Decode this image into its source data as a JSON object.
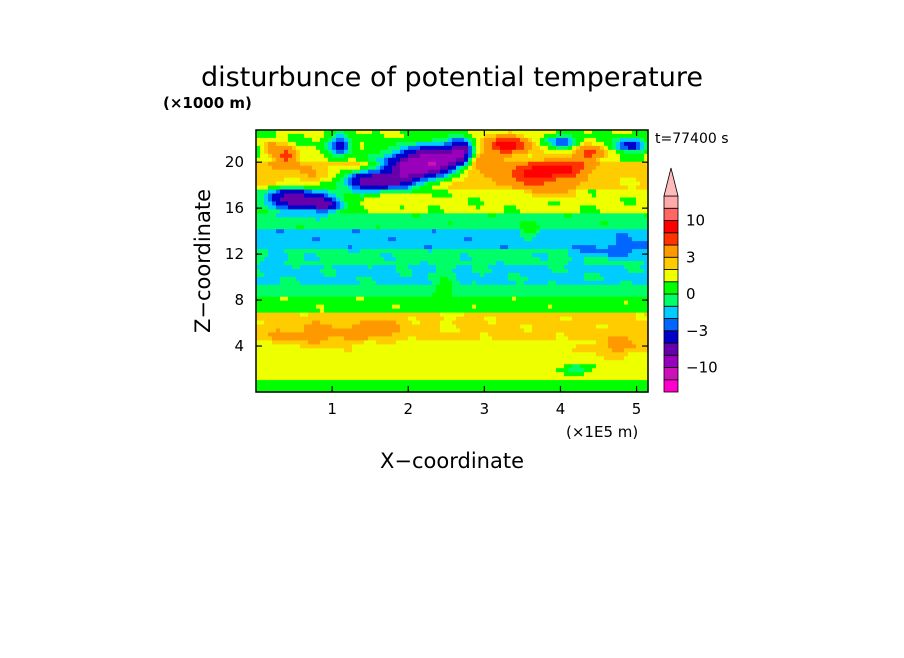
{
  "chart_data": {
    "type": "heatmap",
    "title": "disturbunce of potential temperature",
    "time_label": "t=77400 s",
    "xlabel": "X−coordinate",
    "ylabel": "Z−coordinate",
    "x_unit": "(×1E5 m)",
    "y_unit": "(×1000 m)",
    "xlim": [
      0,
      5.15
    ],
    "ylim": [
      0,
      22.8
    ],
    "xticks": [
      "1",
      "2",
      "3",
      "4",
      "5"
    ],
    "yticks": [
      "4",
      "8",
      "12",
      "16",
      "20"
    ],
    "colorbar": {
      "levels": [
        -20,
        -15,
        -10,
        -7,
        -5,
        -3,
        -2,
        -1,
        0,
        1,
        2,
        3,
        5,
        7,
        10,
        15,
        20
      ],
      "colors": [
        "#ff00cc",
        "#cc11bb",
        "#9900bb",
        "#6600aa",
        "#0000cc",
        "#0066ff",
        "#00ccff",
        "#00ff66",
        "#00ff00",
        "#eeff00",
        "#ffcc00",
        "#ff9900",
        "#ff3300",
        "#ff0000",
        "#ff6666",
        "#ffaaaa",
        "#ffbbbb"
      ],
      "tick_labels": [
        {
          "label": "10",
          "value": 10
        },
        {
          "label": "3",
          "value": 3
        },
        {
          "label": "0",
          "value": 0
        },
        {
          "label": "−3",
          "value": -3
        },
        {
          "label": "−10",
          "value": -10
        }
      ]
    },
    "field": {
      "description_rows_bottom_to_top": true,
      "z_bands": [
        {
          "z": [
            0,
            1.0
          ],
          "value": 0.5
        },
        {
          "z": [
            1.0,
            4.5
          ],
          "value": 1.5
        },
        {
          "z": [
            4.5,
            7.0
          ],
          "value": 2.3
        },
        {
          "z": [
            7.0,
            8.3
          ],
          "value": 0.6
        },
        {
          "z": [
            8.3,
            9.5
          ],
          "value": -0.5
        },
        {
          "z": [
            9.5,
            11.0
          ],
          "value": -1.2
        },
        {
          "z": [
            11.0,
            12.5
          ],
          "value": -0.7
        },
        {
          "z": [
            12.5,
            14.0
          ],
          "value": -1.6
        },
        {
          "z": [
            14.0,
            15.5
          ],
          "value": -0.4
        },
        {
          "z": [
            15.5,
            17.5
          ],
          "value": 1.2
        },
        {
          "z": [
            17.5,
            20.0
          ],
          "value": 2.5
        },
        {
          "z": [
            20.0,
            22.8
          ],
          "value": 1.0
        }
      ],
      "blobs": [
        {
          "x": 0.4,
          "z": 20.5,
          "rx": 0.15,
          "rz": 0.8,
          "value": 6
        },
        {
          "x": 0.2,
          "z": 21.2,
          "rx": 0.1,
          "rz": 0.6,
          "value": 4
        },
        {
          "x": 0.5,
          "z": 16.8,
          "rx": 0.4,
          "rz": 1.0,
          "value": -6
        },
        {
          "x": 0.9,
          "z": 16.3,
          "rx": 0.25,
          "rz": 0.7,
          "value": -4
        },
        {
          "x": 0.7,
          "z": 19.0,
          "rx": 0.3,
          "rz": 0.8,
          "value": 3
        },
        {
          "x": 1.1,
          "z": 21.5,
          "rx": 0.15,
          "rz": 0.8,
          "value": -4
        },
        {
          "x": 1.5,
          "z": 18.3,
          "rx": 0.4,
          "rz": 0.9,
          "value": -6
        },
        {
          "x": 2.0,
          "z": 19.5,
          "rx": 0.35,
          "rz": 1.5,
          "value": -7
        },
        {
          "x": 2.4,
          "z": 20.2,
          "rx": 0.3,
          "rz": 1.2,
          "value": -8
        },
        {
          "x": 2.7,
          "z": 21.0,
          "rx": 0.15,
          "rz": 1.0,
          "value": -6
        },
        {
          "x": 3.0,
          "z": 20.0,
          "rx": 0.2,
          "rz": 0.8,
          "value": 5
        },
        {
          "x": 3.3,
          "z": 21.5,
          "rx": 0.3,
          "rz": 0.8,
          "value": 8
        },
        {
          "x": 3.65,
          "z": 19.0,
          "rx": 0.35,
          "rz": 1.0,
          "value": 8
        },
        {
          "x": 4.1,
          "z": 19.5,
          "rx": 0.25,
          "rz": 0.8,
          "value": 7
        },
        {
          "x": 4.4,
          "z": 20.8,
          "rx": 0.2,
          "rz": 0.6,
          "value": 6
        },
        {
          "x": 4.8,
          "z": 18.0,
          "rx": 0.3,
          "rz": 0.9,
          "value": 2
        },
        {
          "x": 4.9,
          "z": 21.5,
          "rx": 0.2,
          "rz": 0.6,
          "value": -4
        },
        {
          "x": 4.0,
          "z": 21.8,
          "rx": 0.2,
          "rz": 0.5,
          "value": -3
        },
        {
          "x": 3.9,
          "z": 17.5,
          "rx": 0.25,
          "rz": 0.6,
          "value": 4
        },
        {
          "x": 1.8,
          "z": 17.0,
          "rx": 0.4,
          "rz": 0.6,
          "value": 2.5
        },
        {
          "x": 3.6,
          "z": 14.0,
          "rx": 0.12,
          "rz": 0.6,
          "value": 0.5
        },
        {
          "x": 4.9,
          "z": 12.5,
          "rx": 0.3,
          "rz": 0.8,
          "value": -2.5
        },
        {
          "x": 0.3,
          "z": 11.5,
          "rx": 0.25,
          "rz": 0.5,
          "value": -1.5
        },
        {
          "x": 4.4,
          "z": 12.2,
          "rx": 0.3,
          "rz": 0.5,
          "value": -2.2
        },
        {
          "x": 0.8,
          "z": 5.0,
          "rx": 0.6,
          "rz": 1.0,
          "value": 3.5
        },
        {
          "x": 1.6,
          "z": 5.5,
          "rx": 0.3,
          "rz": 0.8,
          "value": 3.5
        },
        {
          "x": 4.8,
          "z": 4.0,
          "rx": 0.4,
          "rz": 0.8,
          "value": 3.5
        },
        {
          "x": 2.5,
          "z": 8.5,
          "rx": 0.15,
          "rz": 2.0,
          "value": 0.5
        },
        {
          "x": 4.2,
          "z": 2.0,
          "rx": 0.15,
          "rz": 0.4,
          "value": -1.5
        }
      ]
    }
  }
}
